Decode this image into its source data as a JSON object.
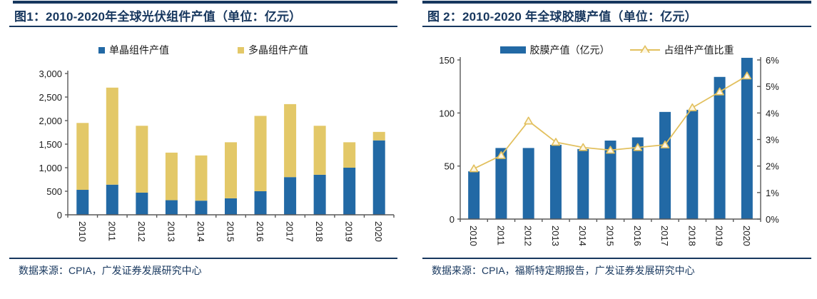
{
  "page": {
    "background": "#FFFFFF"
  },
  "colors": {
    "navy": "#17375E",
    "bar_blue": "#2269A5",
    "bar_yellow": "#E3C868",
    "line_yellow": "#E2C05E",
    "marker_fill": "#FDF6E3",
    "axis_line": "#595959",
    "tick_label": "#1A1A1A"
  },
  "chart_data": [
    {
      "type": "bar",
      "subtype": "stacked",
      "title": "图1：2010-2020年全球光伏组件产值（单位：亿元）",
      "source": "数据来源：CPIA，广发证券发展研究中心",
      "categories": [
        "2010",
        "2011",
        "2012",
        "2013",
        "2014",
        "2015",
        "2016",
        "2017",
        "2018",
        "2019",
        "2020"
      ],
      "series": [
        {
          "name": "单晶组件产值",
          "color": "#2269A5",
          "values": [
            530,
            640,
            470,
            310,
            300,
            350,
            500,
            800,
            850,
            1000,
            1580
          ]
        },
        {
          "name": "多晶组件产值",
          "color": "#E3C868",
          "values": [
            1420,
            2060,
            1420,
            1010,
            960,
            1190,
            1600,
            1550,
            1040,
            540,
            180
          ]
        }
      ],
      "xlabel": "",
      "ylabel": "",
      "ylim": [
        0,
        3000
      ],
      "ytick_step": 500,
      "yticks": [
        "0",
        "500",
        "1,000",
        "1,500",
        "2,000",
        "2,500",
        "3,000"
      ],
      "grid": false,
      "legend_position": "top",
      "xlabel_rotation_deg": 90
    },
    {
      "type": "bar",
      "subtype": "bar-line-dual-axis",
      "title": "图 2：2010-2020 年全球胶膜产值（单位：亿元）",
      "source": "数据来源：CPIA，福斯特定期报告，广发证券发展研究中心",
      "categories": [
        "2010",
        "2011",
        "2012",
        "2013",
        "2014",
        "2015",
        "2016",
        "2017",
        "2018",
        "2019",
        "2020"
      ],
      "series": [
        {
          "name": "胶膜产值（亿元）",
          "kind": "bar",
          "axis": "left",
          "color": "#2269A5",
          "values": [
            45,
            67,
            67,
            70,
            66,
            74,
            77,
            101,
            103,
            134,
            152
          ]
        },
        {
          "name": "占组件产值比重",
          "kind": "line",
          "axis": "right",
          "color": "#E2C05E",
          "marker": "triangle-open",
          "values_pct": [
            1.9,
            2.4,
            3.7,
            2.9,
            2.7,
            2.6,
            2.7,
            2.8,
            4.2,
            4.8,
            5.4
          ]
        }
      ],
      "xlabel": "",
      "ylabel": "",
      "left_ylim": [
        0,
        150
      ],
      "left_ytick_step": 50,
      "left_yticks": [
        "0",
        "50",
        "100",
        "150"
      ],
      "right_ylim_pct": [
        0,
        6
      ],
      "right_ytick_step_pct": 1,
      "right_yticks": [
        "0%",
        "1%",
        "2%",
        "3%",
        "4%",
        "5%",
        "6%"
      ],
      "grid": false,
      "legend_position": "top",
      "xlabel_rotation_deg": 90
    }
  ]
}
